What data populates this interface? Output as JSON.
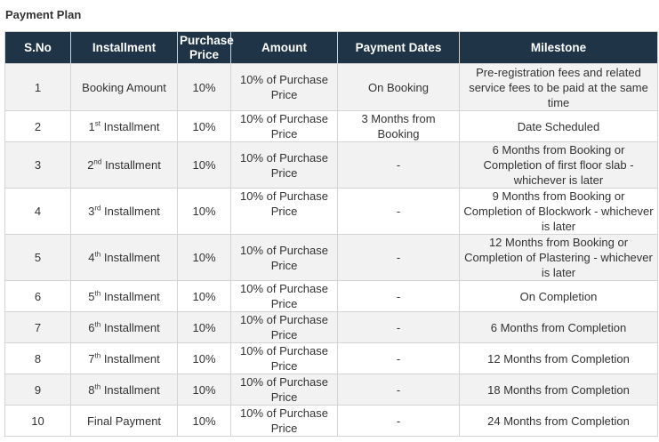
{
  "title": "Payment Plan",
  "columns": [
    "S.No",
    "Installment",
    "Purchase Price",
    "Amount",
    "Payment Dates",
    "Milestone"
  ],
  "header_color": "#1f3446",
  "rows": [
    {
      "sno": "1",
      "inst": "Booking Amount",
      "sup": "",
      "price": "10%",
      "amount": "10% of Purchase Price",
      "date": "On Booking",
      "milestone": "Pre-registration fees and related service fees to be paid at the same time"
    },
    {
      "sno": "2",
      "inst": "1",
      "sup": "st",
      "suffix": " Installment",
      "price": "10%",
      "amount": "10% of Purchase Price",
      "date": "3 Months from Booking",
      "milestone": "Date Scheduled"
    },
    {
      "sno": "3",
      "inst": "2",
      "sup": "nd",
      "suffix": " Installment",
      "price": "10%",
      "amount": "10% of Purchase Price",
      "date": "-",
      "milestone": "6 Months from Booking or Completion of first floor slab - whichever is later"
    },
    {
      "sno": "4",
      "inst": "3",
      "sup": "rd",
      "suffix": " Installment",
      "price": "10%",
      "amount": "10% of Purchase Price",
      "date": "-",
      "milestone": "9 Months from Booking or Completion of Blockwork - whichever is later"
    },
    {
      "sno": "5",
      "inst": "4",
      "sup": "th",
      "suffix": " Installment",
      "price": "10%",
      "amount": "10% of Purchase Price",
      "date": "-",
      "milestone": "12 Months from Booking or Completion of Plastering - whichever is later"
    },
    {
      "sno": "6",
      "inst": "5",
      "sup": "th",
      "suffix": " Installment",
      "price": "10%",
      "amount": "10% of Purchase Price",
      "date": "-",
      "milestone": "On Completion"
    },
    {
      "sno": "7",
      "inst": "6",
      "sup": "th",
      "suffix": " Installment",
      "price": "10%",
      "amount": "10% of Purchase Price",
      "date": "-",
      "milestone": "6 Months from Completion"
    },
    {
      "sno": "8",
      "inst": "7",
      "sup": "th",
      "suffix": " Installment",
      "price": "10%",
      "amount": "10% of Purchase Price",
      "date": "-",
      "milestone": "12 Months from Completion"
    },
    {
      "sno": "9",
      "inst": "8",
      "sup": "th",
      "suffix": " Installment",
      "price": "10%",
      "amount": "10% of Purchase Price",
      "date": "-",
      "milestone": "18 Months from Completion"
    },
    {
      "sno": "10",
      "inst": "Final Payment",
      "sup": "",
      "price": "10%",
      "amount": "10% of Purchase Price",
      "date": "-",
      "milestone": "24 Months from Completion"
    }
  ]
}
